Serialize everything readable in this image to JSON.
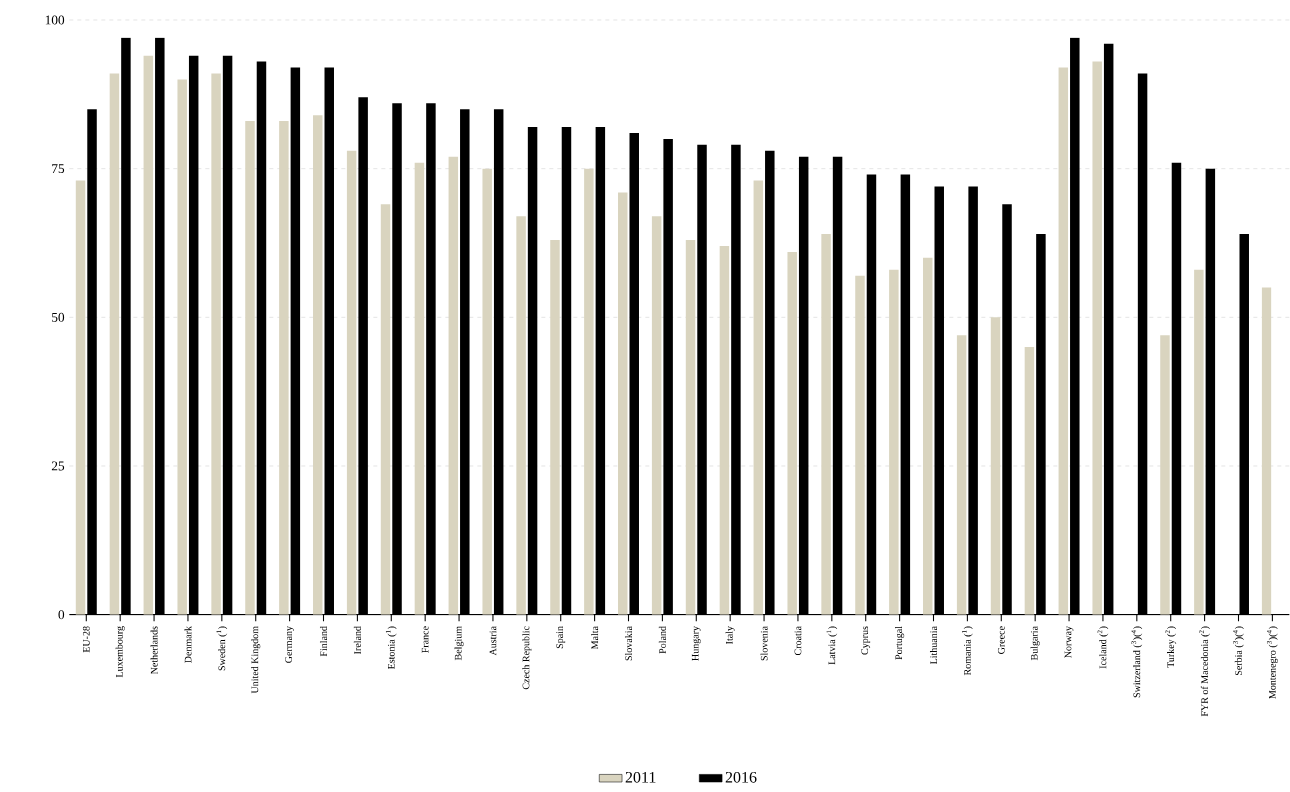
{
  "chart_data": {
    "type": "bar",
    "categories": [
      "EU-28",
      "Luxembourg",
      "Netherlands",
      "Denmark",
      "Sweden ($^{1}$)",
      "United Kingdom",
      "Germany",
      "Finland",
      "Ireland",
      "Estonia ($^{1}$)",
      "France",
      "Belgium",
      "Austria",
      "Czech Republic",
      "Spain",
      "Malta",
      "Slovakia",
      "Poland",
      "Hungary",
      "Italy",
      "Slovenia",
      "Croatia",
      "Latvia ($^{1}$)",
      "Cyprus",
      "Portugal",
      "Lithuania",
      "Romania ($^{1}$)",
      "Greece",
      "Bulgaria",
      "Norway",
      "Iceland ($^{2}$)",
      "Switzerland ($^{3}$)($^{4}$)",
      "Turkey ($^{2}$)",
      "FYR of Macedonia ($^{2}$)",
      "Serbia ($^{3}$)($^{4}$)",
      "Montenegro ($^{3}$)($^{4}$)"
    ],
    "series": [
      {
        "name": "2011",
        "color": "#d9d4bf",
        "values": [
          73,
          91,
          94,
          90,
          91,
          83,
          83,
          84,
          78,
          69,
          76,
          77,
          75,
          67,
          63,
          75,
          71,
          67,
          63,
          62,
          73,
          61,
          64,
          57,
          58,
          60,
          47,
          50,
          45,
          92,
          93,
          null,
          47,
          58,
          null,
          55
        ]
      },
      {
        "name": "2016",
        "color": "#000000",
        "values": [
          85,
          97,
          97,
          94,
          94,
          93,
          92,
          92,
          87,
          86,
          86,
          85,
          85,
          82,
          82,
          82,
          81,
          80,
          79,
          79,
          78,
          77,
          77,
          74,
          74,
          72,
          72,
          69,
          64,
          97,
          96,
          91,
          76,
          75,
          64,
          null
        ]
      }
    ],
    "ylim": [
      0,
      100
    ],
    "yticks": [
      0,
      25,
      50,
      75,
      100
    ],
    "grid": "y",
    "legend": "bottom"
  }
}
